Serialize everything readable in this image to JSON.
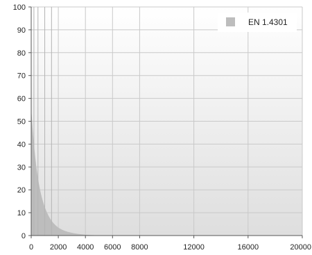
{
  "chart_data": {
    "type": "area",
    "title": "",
    "xlabel": "",
    "ylabel": "",
    "xlim": [
      0,
      20000
    ],
    "ylim": [
      0,
      100
    ],
    "x_ticks": [
      0,
      2000,
      4000,
      6000,
      8000,
      12000,
      16000,
      20000
    ],
    "x_tick_labels": [
      "0",
      "2000",
      "4000",
      "6000",
      "8000",
      "12000",
      "16000",
      "20000"
    ],
    "y_ticks": [
      0,
      10,
      20,
      30,
      40,
      50,
      60,
      70,
      80,
      90,
      100
    ],
    "y_tick_labels": [
      "0",
      "10",
      "20",
      "30",
      "40",
      "50",
      "60",
      "70",
      "80",
      "90",
      "100"
    ],
    "reference_lines_x": [
      200,
      500,
      1000,
      1500
    ],
    "grid": true,
    "legend_position": "top-right",
    "series": [
      {
        "name": "EN 1.4301",
        "color": "#bdbdbd",
        "x": [
          0,
          250,
          500,
          750,
          1000,
          1500,
          2000,
          2500,
          3000,
          3500,
          4000,
          5000,
          20000
        ],
        "y": [
          56,
          37,
          25,
          17.5,
          12.5,
          6.5,
          3.5,
          2,
          1.2,
          0.7,
          0.4,
          0.1,
          0
        ]
      }
    ]
  },
  "colors": {
    "gradient_top": "#ffffff",
    "gradient_bottom": "#dedede",
    "grid": "#c9c9c9",
    "axis": "#555555"
  }
}
